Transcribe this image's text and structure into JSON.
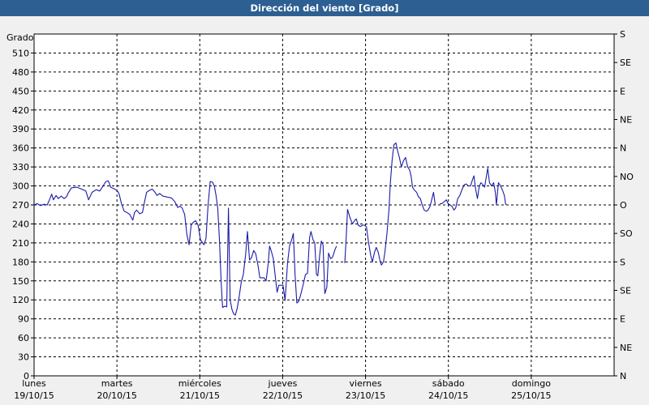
{
  "window": {
    "title": "Dirección del viento [Grado]"
  },
  "chart_data": {
    "type": "line",
    "title": "Dirección del viento [Grado]",
    "ylabel": "Grado",
    "ylim": [
      0,
      540
    ],
    "yticks": [
      0,
      30,
      60,
      90,
      120,
      150,
      180,
      210,
      240,
      270,
      300,
      330,
      360,
      390,
      420,
      450,
      480,
      510
    ],
    "y_right_ticks": [
      {
        "value": 0,
        "label": "N"
      },
      {
        "value": 45,
        "label": "NE"
      },
      {
        "value": 90,
        "label": "E"
      },
      {
        "value": 135,
        "label": "SE"
      },
      {
        "value": 180,
        "label": "S"
      },
      {
        "value": 225,
        "label": "SO"
      },
      {
        "value": 270,
        "label": "O"
      },
      {
        "value": 315,
        "label": "NO"
      },
      {
        "value": 360,
        "label": "N"
      },
      {
        "value": 405,
        "label": "NE"
      },
      {
        "value": 450,
        "label": "E"
      },
      {
        "value": 495,
        "label": "SE"
      },
      {
        "value": 540,
        "label": "S"
      }
    ],
    "xlim": [
      0,
      168
    ],
    "x_unit": "hours since 19/10/15 00:00",
    "xticks": [
      {
        "x": 0,
        "day": "lunes",
        "date": "19/10/15"
      },
      {
        "x": 24,
        "day": "martes",
        "date": "20/10/15"
      },
      {
        "x": 48,
        "day": "miércoles",
        "date": "21/10/15"
      },
      {
        "x": 72,
        "day": "jueves",
        "date": "22/10/15"
      },
      {
        "x": 96,
        "day": "viernes",
        "date": "23/10/15"
      },
      {
        "x": 120,
        "day": "sábado",
        "date": "24/10/15"
      },
      {
        "x": 144,
        "day": "domingo",
        "date": "25/10/15"
      }
    ],
    "grid": true,
    "color": "#1b1ba8",
    "series": [
      {
        "segments": [
          [
            [
              0,
              270
            ],
            [
              0.9,
              272
            ],
            [
              1.8,
              269
            ],
            [
              2.9,
              271
            ],
            [
              3.8,
              270
            ],
            [
              4.6,
              280
            ],
            [
              5.1,
              287
            ],
            [
              5.6,
              278
            ],
            [
              6.4,
              285
            ],
            [
              7.0,
              280
            ],
            [
              7.9,
              284
            ],
            [
              8.7,
              280
            ],
            [
              9.4,
              283
            ],
            [
              10.0,
              290
            ],
            [
              10.8,
              297
            ],
            [
              12.4,
              298
            ],
            [
              13.8,
              295
            ],
            [
              15.0,
              292
            ],
            [
              15.8,
              278
            ],
            [
              16.8,
              290
            ],
            [
              18.0,
              294
            ],
            [
              19.0,
              292
            ],
            [
              20.0,
              300
            ],
            [
              20.8,
              307
            ],
            [
              21.5,
              308
            ],
            [
              22.2,
              298
            ],
            [
              23.0,
              296
            ],
            [
              24.0,
              293
            ],
            [
              24.6,
              288
            ],
            [
              25.3,
              272
            ],
            [
              26.1,
              260
            ],
            [
              26.9,
              258
            ],
            [
              27.7,
              255
            ],
            [
              28.6,
              246
            ],
            [
              29.1,
              258
            ],
            [
              29.7,
              262
            ],
            [
              30.6,
              256
            ],
            [
              31.4,
              258
            ],
            [
              32.0,
              275
            ],
            [
              32.6,
              290
            ],
            [
              33.4,
              293
            ],
            [
              34.2,
              295
            ],
            [
              34.9,
              291
            ],
            [
              35.6,
              285
            ],
            [
              36.4,
              288
            ],
            [
              37.3,
              284
            ],
            [
              38.1,
              283
            ],
            [
              38.9,
              282
            ],
            [
              39.8,
              281
            ],
            [
              40.8,
              275
            ],
            [
              41.6,
              266
            ],
            [
              42.3,
              268
            ],
            [
              42.9,
              265
            ],
            [
              43.6,
              255
            ],
            [
              44.3,
              222
            ],
            [
              44.9,
              207
            ],
            [
              45.5,
              238
            ],
            [
              46.2,
              243
            ],
            [
              46.8,
              245
            ],
            [
              47.5,
              238
            ],
            [
              48.2,
              215
            ],
            [
              49.2,
              207
            ],
            [
              49.8,
              217
            ],
            [
              50.4,
              270
            ],
            [
              51.0,
              307
            ],
            [
              51.7,
              306
            ],
            [
              52.2,
              300
            ],
            [
              52.7,
              285
            ],
            [
              53.2,
              265
            ],
            [
              53.7,
              215
            ],
            [
              54.2,
              145
            ],
            [
              54.6,
              108
            ],
            [
              55.2,
              110
            ],
            [
              55.8,
              109
            ],
            [
              56.3,
              265
            ],
            [
              56.8,
              120
            ],
            [
              57.3,
              105
            ],
            [
              57.8,
              98
            ],
            [
              58.3,
              96
            ],
            [
              58.8,
              106
            ],
            [
              59.4,
              125
            ],
            [
              60.0,
              148
            ],
            [
              60.6,
              160
            ],
            [
              61.3,
              193
            ],
            [
              61.8,
              228
            ],
            [
              62.4,
              183
            ],
            [
              63.0,
              187
            ],
            [
              63.6,
              198
            ],
            [
              64.2,
              193
            ],
            [
              64.9,
              173
            ],
            [
              65.4,
              155
            ],
            [
              66.0,
              155
            ],
            [
              66.6,
              155
            ],
            [
              67.2,
              150
            ],
            [
              67.8,
              177
            ],
            [
              68.2,
              205
            ],
            [
              68.7,
              197
            ],
            [
              69.3,
              185
            ],
            [
              69.9,
              155
            ],
            [
              70.4,
              132
            ],
            [
              70.9,
              143
            ],
            [
              71.5,
              143
            ],
            [
              72.1,
              143
            ],
            [
              72.7,
              119
            ],
            [
              73.4,
              178
            ],
            [
              74.0,
              205
            ],
            [
              74.6,
              215
            ],
            [
              75.1,
              225
            ],
            [
              75.6,
              160
            ],
            [
              76.1,
              115
            ],
            [
              76.7,
              118
            ],
            [
              77.3,
              130
            ],
            [
              77.9,
              143
            ],
            [
              78.6,
              160
            ],
            [
              79.2,
              162
            ],
            [
              79.8,
              218
            ],
            [
              80.2,
              228
            ],
            [
              80.8,
              215
            ],
            [
              81.3,
              210
            ],
            [
              81.8,
              160
            ],
            [
              82.2,
              158
            ],
            [
              82.7,
              190
            ],
            [
              83.2,
              213
            ],
            [
              83.7,
              207
            ],
            [
              84.2,
              130
            ],
            [
              84.8,
              140
            ],
            [
              85.3,
              194
            ],
            [
              85.9,
              185
            ],
            [
              86.5,
              188
            ],
            [
              87.2,
              200
            ],
            [
              87.6,
              205
            ]
          ],
          [
            [
              90.0,
              178
            ],
            [
              90.4,
              217
            ],
            [
              90.8,
              263
            ],
            [
              91.5,
              250
            ],
            [
              92.2,
              240
            ],
            [
              92.8,
              245
            ],
            [
              93.3,
              248
            ],
            [
              93.9,
              238
            ],
            [
              94.5,
              236
            ],
            [
              95.2,
              238
            ],
            [
              95.8,
              238
            ],
            [
              96.3,
              235
            ],
            [
              96.9,
              210
            ],
            [
              97.5,
              190
            ],
            [
              98.0,
              180
            ],
            [
              98.6,
              195
            ],
            [
              99.1,
              203
            ],
            [
              99.7,
              195
            ],
            [
              100.2,
              182
            ],
            [
              100.6,
              175
            ],
            [
              101.2,
              180
            ],
            [
              101.6,
              195
            ],
            [
              102.2,
              225
            ],
            [
              102.8,
              263
            ],
            [
              103.2,
              305
            ],
            [
              103.7,
              340
            ],
            [
              104.2,
              365
            ],
            [
              104.8,
              368
            ],
            [
              105.3,
              355
            ],
            [
              105.8,
              345
            ],
            [
              106.4,
              330
            ],
            [
              107.0,
              340
            ],
            [
              107.6,
              345
            ],
            [
              108.2,
              330
            ],
            [
              108.8,
              325
            ],
            [
              109.2,
              315
            ],
            [
              109.6,
              298
            ],
            [
              110.2,
              293
            ],
            [
              110.8,
              290
            ],
            [
              111.3,
              283
            ],
            [
              111.9,
              280
            ],
            [
              112.4,
              270
            ],
            [
              113.0,
              262
            ],
            [
              113.6,
              260
            ],
            [
              114.1,
              262
            ],
            [
              114.7,
              268
            ],
            [
              115.1,
              277
            ],
            [
              115.7,
              290
            ],
            [
              116.2,
              270
            ]
          ],
          [
            [
              117.5,
              272
            ],
            [
              118.1,
              272
            ],
            [
              118.8,
              275
            ],
            [
              119.4,
              278
            ],
            [
              119.9,
              272
            ],
            [
              120.5,
              270
            ],
            [
              121.0,
              268
            ],
            [
              121.6,
              262
            ],
            [
              122.1,
              265
            ],
            [
              122.7,
              280
            ],
            [
              123.3,
              285
            ],
            [
              124.0,
              295
            ],
            [
              124.6,
              302
            ],
            [
              125.2,
              303
            ],
            [
              125.8,
              300
            ],
            [
              126.4,
              300
            ],
            [
              127.0,
              310
            ],
            [
              127.4,
              316
            ],
            [
              127.9,
              295
            ],
            [
              128.4,
              280
            ],
            [
              128.9,
              298
            ],
            [
              129.4,
              305
            ],
            [
              130.0,
              302
            ],
            [
              130.5,
              298
            ],
            [
              131.0,
              315
            ],
            [
              131.4,
              328
            ],
            [
              131.9,
              305
            ],
            [
              132.5,
              300
            ],
            [
              133.1,
              305
            ],
            [
              133.6,
              290
            ],
            [
              133.9,
              270
            ],
            [
              134.5,
              305
            ],
            [
              135.1,
              300
            ],
            [
              135.7,
              293
            ],
            [
              136.2,
              285
            ],
            [
              136.6,
              270
            ]
          ]
        ]
      }
    ]
  }
}
